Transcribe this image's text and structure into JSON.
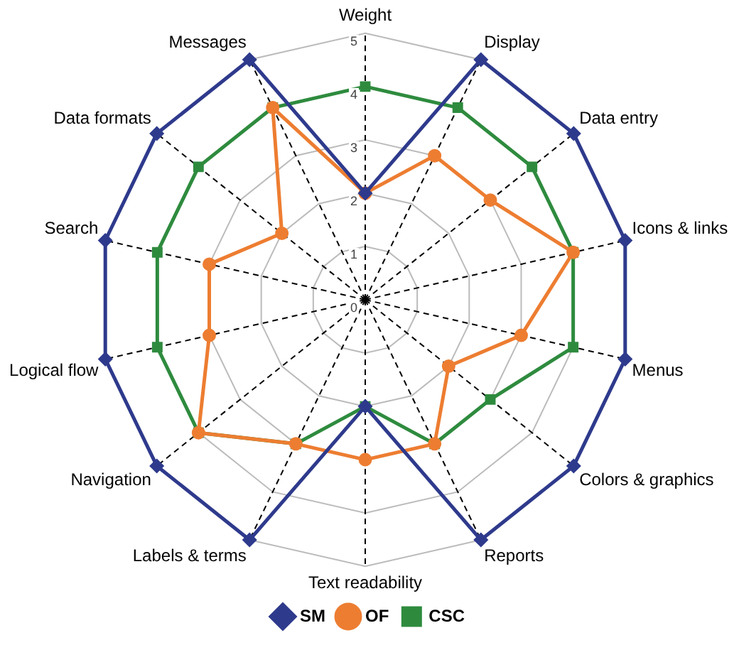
{
  "chart_data": {
    "type": "radar",
    "categories": [
      "Weight",
      "Display",
      "Data entry",
      "Icons & links",
      "Menus",
      "Colors & graphics",
      "Reports",
      "Text readability",
      "Labels & terms",
      "Navigation",
      "Logical flow",
      "Search",
      "Data formats",
      "Messages"
    ],
    "series": [
      {
        "name": "SM",
        "color": "#2e3a8c",
        "marker": "diamond",
        "values": [
          2,
          5,
          5,
          5,
          5,
          5,
          5,
          2,
          5,
          5,
          5,
          5,
          5,
          5
        ]
      },
      {
        "name": "OF",
        "color": "#ed7d31",
        "marker": "circle",
        "values": [
          2,
          3,
          3,
          4,
          3,
          2,
          3,
          3,
          3,
          4,
          3,
          3,
          2,
          4
        ]
      },
      {
        "name": "CSC",
        "color": "#2e8b3e",
        "marker": "square",
        "values": [
          4,
          4,
          4,
          4,
          4,
          3,
          3,
          2,
          3,
          4,
          4,
          4,
          4,
          4
        ]
      }
    ],
    "ylim": [
      0,
      5
    ],
    "yticks": [
      0,
      1,
      2,
      3,
      4,
      5
    ],
    "grid": true,
    "legend": "bottom"
  }
}
